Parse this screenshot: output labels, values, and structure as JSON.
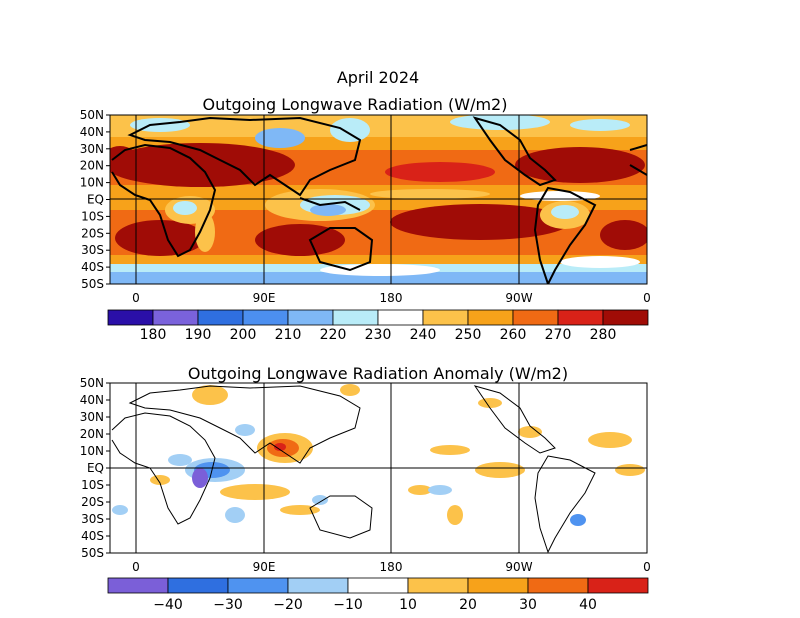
{
  "figure_title": "April 2024",
  "top_panel": {
    "title": "Outgoing Longwave Radiation (W/m2)",
    "lat_ticks": [
      "50N",
      "40N",
      "30N",
      "20N",
      "10N",
      "EQ",
      "10S",
      "20S",
      "30S",
      "40S",
      "50S"
    ],
    "lon_ticks": [
      "0",
      "90E",
      "180",
      "90W",
      "0"
    ],
    "colorbar": {
      "labels": [
        "180",
        "190",
        "200",
        "210",
        "220",
        "230",
        "240",
        "250",
        "260",
        "270",
        "280"
      ],
      "colors": [
        "#2a0fa8",
        "#7a62db",
        "#2f6fe0",
        "#4c8ff0",
        "#7fb8f6",
        "#b9ecf8",
        "#ffffff",
        "#fcc24a",
        "#f7a21a",
        "#f06a14",
        "#d92218",
        "#a00c06"
      ]
    }
  },
  "bottom_panel": {
    "title": "Outgoing Longwave Radiation Anomaly (W/m2)",
    "lat_ticks": [
      "50N",
      "40N",
      "30N",
      "20N",
      "10N",
      "EQ",
      "10S",
      "20S",
      "30S",
      "40S",
      "50S"
    ],
    "lon_ticks": [
      "0",
      "90E",
      "180",
      "90W",
      "0"
    ],
    "colorbar": {
      "labels": [
        "−40",
        "−30",
        "−20",
        "−10",
        "10",
        "20",
        "30",
        "40"
      ],
      "colors": [
        "#7b5fd8",
        "#2f6fe0",
        "#4f93f0",
        "#a2cff5",
        "#ffffff",
        "#fcc24a",
        "#f7a21a",
        "#f06a14",
        "#d92218"
      ]
    }
  }
}
